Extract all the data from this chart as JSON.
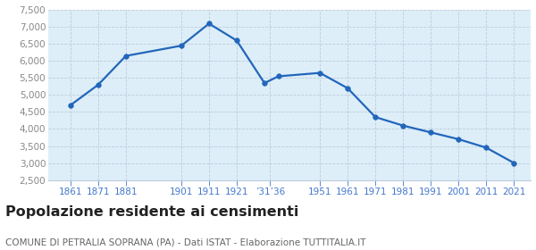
{
  "years": [
    1861,
    1871,
    1881,
    1901,
    1911,
    1921,
    1931,
    1936,
    1951,
    1961,
    1971,
    1981,
    1991,
    2001,
    2011,
    2021
  ],
  "population": [
    4700,
    5300,
    6150,
    6450,
    7100,
    6600,
    5350,
    5550,
    5650,
    5200,
    4350,
    4100,
    3900,
    3700,
    3450,
    3000
  ],
  "ylim": [
    2500,
    7500
  ],
  "yticks": [
    2500,
    3000,
    3500,
    4000,
    4500,
    5000,
    5500,
    6000,
    6500,
    7000,
    7500
  ],
  "x_tick_pos": [
    1861,
    1871,
    1881,
    1901,
    1911,
    1921,
    1933,
    1951,
    1961,
    1971,
    1981,
    1991,
    2001,
    2011,
    2021
  ],
  "x_tick_labels": [
    "1861",
    "1871",
    "1881",
    "1901",
    "1911",
    "1921",
    "’31’36",
    "1951",
    "1961",
    "1971",
    "1981",
    "1991",
    "2001",
    "2011",
    "2021"
  ],
  "xlim_left": 1853,
  "xlim_right": 2027,
  "line_color": "#2266bb",
  "fill_color": "#ddeef8",
  "marker_color": "#2266bb",
  "grid_color": "#bbccdd",
  "background_color": "#ffffff",
  "title": "Popolazione residente ai censimenti",
  "subtitle": "COMUNE DI PETRALIA SOPRANA (PA) - Dati ISTAT - Elaborazione TUTTITALIA.IT",
  "title_fontsize": 11.5,
  "subtitle_fontsize": 7.5,
  "ytick_fontsize": 7.5,
  "xtick_fontsize": 7.5,
  "tick_color_x": "#4477cc",
  "tick_color_y": "#888888"
}
